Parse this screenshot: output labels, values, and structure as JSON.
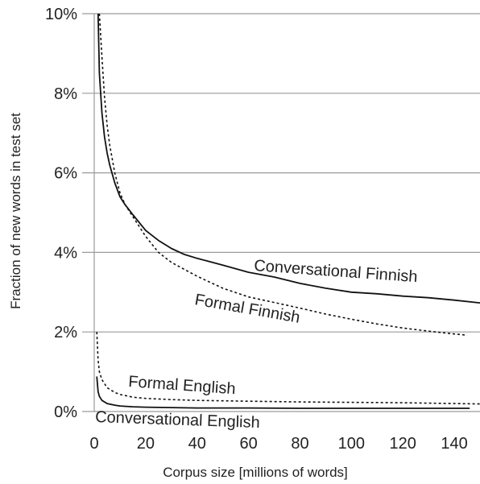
{
  "chart_data": {
    "type": "line",
    "title": "",
    "xlabel": "Corpus size [millions of words]",
    "ylabel": "Fraction of new words in test set",
    "xlim": [
      0,
      150
    ],
    "ylim": [
      0,
      10
    ],
    "x_ticks": [
      "0",
      "20",
      "40",
      "60",
      "80",
      "100",
      "120",
      "140"
    ],
    "y_ticks": [
      "0%",
      "2%",
      "4%",
      "6%",
      "8%",
      "10%"
    ],
    "grid": "horizontal",
    "legend": "inline labels",
    "series": [
      {
        "name": "Conversational Finnish",
        "style": "solid",
        "x": [
          1.5,
          2,
          3,
          4,
          5,
          6,
          8,
          10,
          12,
          15,
          20,
          25,
          30,
          35,
          40,
          50,
          60,
          70,
          80,
          90,
          100,
          110,
          120,
          130,
          140,
          150
        ],
        "y": [
          10,
          8.5,
          7.5,
          6.9,
          6.5,
          6.2,
          5.75,
          5.4,
          5.2,
          4.95,
          4.55,
          4.3,
          4.1,
          3.95,
          3.85,
          3.68,
          3.5,
          3.38,
          3.22,
          3.1,
          3.0,
          2.96,
          2.9,
          2.86,
          2.8,
          2.73
        ]
      },
      {
        "name": "Formal Finnish",
        "style": "dotted",
        "x": [
          2,
          3,
          4,
          5,
          6,
          8,
          10,
          12,
          15,
          20,
          25,
          30,
          40,
          50,
          60,
          70,
          80,
          90,
          100,
          110,
          120,
          130,
          140,
          145
        ],
        "y": [
          10,
          8.9,
          7.9,
          7.2,
          6.7,
          6.0,
          5.5,
          5.2,
          4.9,
          4.4,
          4.0,
          3.75,
          3.4,
          3.1,
          2.88,
          2.74,
          2.6,
          2.45,
          2.32,
          2.2,
          2.1,
          2.02,
          1.95,
          1.92
        ]
      },
      {
        "name": "Formal English",
        "style": "dotted",
        "x": [
          1,
          1.5,
          2,
          3,
          5,
          8,
          10,
          15,
          20,
          30,
          40,
          60,
          80,
          100,
          120,
          140,
          150
        ],
        "y": [
          2.0,
          1.3,
          1.0,
          0.8,
          0.6,
          0.48,
          0.43,
          0.36,
          0.33,
          0.3,
          0.28,
          0.26,
          0.24,
          0.23,
          0.22,
          0.2,
          0.19
        ]
      },
      {
        "name": "Conversational English",
        "style": "solid",
        "x": [
          1,
          1.5,
          2,
          3,
          5,
          8,
          10,
          15,
          20,
          30,
          40,
          60,
          80,
          100,
          120,
          140,
          146
        ],
        "y": [
          0.88,
          0.5,
          0.38,
          0.28,
          0.2,
          0.16,
          0.14,
          0.12,
          0.11,
          0.1,
          0.09,
          0.09,
          0.08,
          0.08,
          0.08,
          0.08,
          0.08
        ]
      }
    ]
  }
}
